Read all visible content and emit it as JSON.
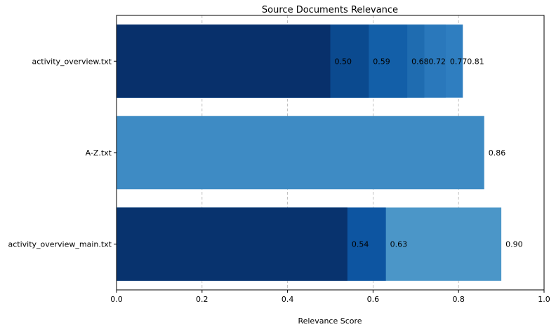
{
  "chart_data": {
    "type": "bar",
    "orientation": "horizontal",
    "title": "Source Documents Relevance",
    "xlabel": "Relevance Score",
    "ylabel": "",
    "xlim": [
      0,
      1
    ],
    "xticks": [
      "0.0",
      "0.2",
      "0.4",
      "0.6",
      "0.8",
      "1.0"
    ],
    "grid": "x-dashed",
    "legend": "none",
    "categories": [
      "activity_overview.txt",
      "A-Z.txt",
      "activity_overview_main.txt"
    ],
    "bars": [
      {
        "category": "activity_overview.txt",
        "values": [
          0.81,
          0.77,
          0.72,
          0.68,
          0.59,
          0.5
        ],
        "labels": [
          "0.81",
          "0.77",
          "0.72",
          "0.68",
          "0.59",
          "0.50"
        ],
        "colors": [
          "#2f7ec0",
          "#2a78bb",
          "#1f6cb0",
          "#135fa8",
          "#0b4a8f",
          "#08306b"
        ]
      },
      {
        "category": "A-Z.txt",
        "values": [
          0.86
        ],
        "labels": [
          "0.86"
        ],
        "colors": [
          "#3e8bc4"
        ]
      },
      {
        "category": "activity_overview_main.txt",
        "values": [
          0.9,
          0.63,
          0.54
        ],
        "labels": [
          "0.90",
          "0.63",
          "0.54"
        ],
        "colors": [
          "#4b96c8",
          "#0d55a1",
          "#08336e"
        ]
      }
    ]
  }
}
